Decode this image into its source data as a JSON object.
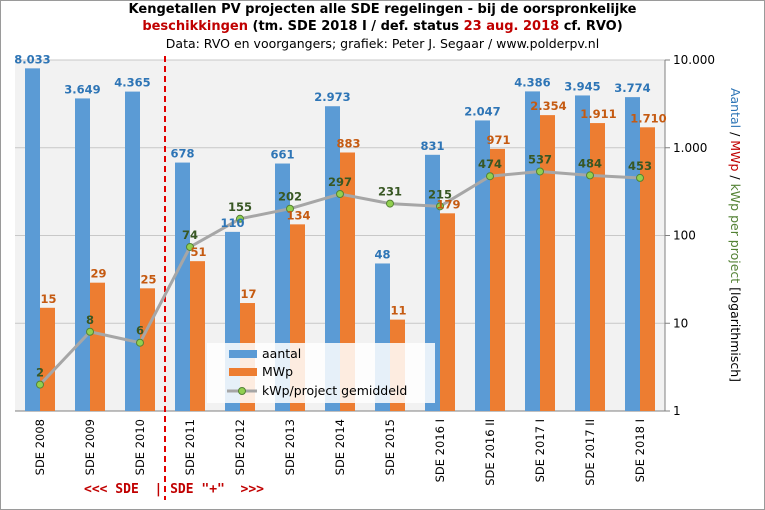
{
  "title": {
    "line1": "Kengetallen PV projecten alle SDE regelingen - bij de oorspronkelijke",
    "line2_red": "beschikkingen",
    "line2_a": " (tm. SDE 2018 I / def. status ",
    "line2_date": "23 aug. 2018",
    "line2_b": " cf. RVO)",
    "line3": "Data: RVO en voorgangers; grafiek: Peter J. Segaar / www.polderpv.nl"
  },
  "scheme_note": "<<< SDE  | SDE \"+\"  >>>",
  "colors": {
    "aantal": "#5b9bd5",
    "mwp": "#ed7d31",
    "line": "#a6a6a6",
    "marker": "#92d050",
    "marker_edge": "#548235",
    "aantal_label": "#2e75b6",
    "mwp_label": "#c55a11",
    "kwp_label": "#385723",
    "divider": "#e00000"
  },
  "chart_data": {
    "type": "bar",
    "y_scale": "log",
    "ylim": [
      1,
      10000
    ],
    "grid": true,
    "legend_position": "bottom-center",
    "categories": [
      "SDE 2008",
      "SDE 2009",
      "SDE 2010",
      "SDE 2011",
      "SDE 2012",
      "SDE 2013",
      "SDE 2014",
      "SDE 2015",
      "SDE 2016 I",
      "SDE 2016 II",
      "SDE 2017 I",
      "SDE 2017 II",
      "SDE 2018 I"
    ],
    "y_ticks": [
      {
        "value": 1,
        "label": "1"
      },
      {
        "value": 10,
        "label": "10"
      },
      {
        "value": 100,
        "label": "100"
      },
      {
        "value": 1000,
        "label": "1.000"
      },
      {
        "value": 10000,
        "label": "10.000"
      }
    ],
    "ylabel_parts": [
      {
        "text": "Aantal",
        "color": "#2e75b6"
      },
      {
        "text": " / ",
        "color": "#000000"
      },
      {
        "text": "MWp",
        "color": "#c00000"
      },
      {
        "text": " / ",
        "color": "#000000"
      },
      {
        "text": "kWp per project",
        "color": "#548235"
      },
      {
        "text": " [logarithmisch]",
        "color": "#000000"
      }
    ],
    "series": [
      {
        "name": "aantal",
        "kind": "bar",
        "values": [
          8033,
          3649,
          4365,
          678,
          110,
          661,
          2973,
          48,
          831,
          2047,
          4386,
          3945,
          3774
        ],
        "labels": [
          "8.033",
          "3.649",
          "4.365",
          "678",
          "110",
          "661",
          "2.973",
          "48",
          "831",
          "2.047",
          "4.386",
          "3.945",
          "3.774"
        ]
      },
      {
        "name": "MWp",
        "kind": "bar",
        "values": [
          15,
          29,
          25,
          51,
          17,
          134,
          883,
          11,
          179,
          971,
          2354,
          1911,
          1710
        ],
        "labels": [
          "15",
          "29",
          "25",
          "51",
          "17",
          "134",
          "883",
          "11",
          "179",
          "971",
          "2.354",
          "1.911",
          "1.710"
        ]
      },
      {
        "name": "kWp/project gemiddeld",
        "kind": "line",
        "values": [
          2,
          8,
          6,
          74,
          155,
          202,
          297,
          231,
          215,
          474,
          537,
          484,
          453
        ],
        "labels": [
          "2",
          "8",
          "6",
          "74",
          "155",
          "202",
          "297",
          "231",
          "215",
          "474",
          "537",
          "484",
          "453"
        ]
      }
    ]
  }
}
